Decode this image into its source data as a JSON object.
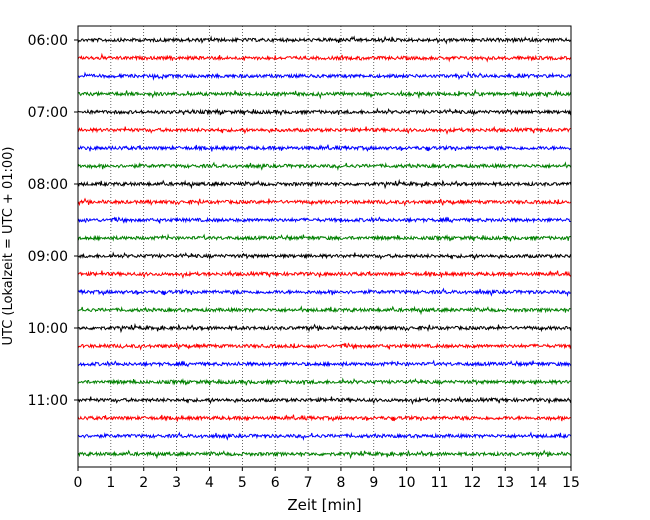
{
  "chart_data": {
    "type": "line",
    "title": "",
    "xlabel": "Zeit  [min]",
    "ylabel": "UTC (Lokalzeit = UTC + 01:00)",
    "xlim": [
      0,
      15
    ],
    "x_ticks": [
      "0",
      "1",
      "2",
      "3",
      "4",
      "5",
      "6",
      "7",
      "8",
      "9",
      "10",
      "11",
      "12",
      "13",
      "14",
      "15"
    ],
    "y_ticks": [
      "06:00",
      "07:00",
      "08:00",
      "09:00",
      "10:00",
      "11:00"
    ],
    "y_tick_hours": [
      6,
      7,
      8,
      9,
      10,
      11
    ],
    "grid": "vertical dotted",
    "trace_interval_minutes": 15,
    "trace_colors": [
      "#000000",
      "#ff0000",
      "#0000ff",
      "#008000"
    ],
    "series": [
      {
        "start": "06:00",
        "color": "#000000"
      },
      {
        "start": "06:15",
        "color": "#ff0000"
      },
      {
        "start": "06:30",
        "color": "#0000ff"
      },
      {
        "start": "06:45",
        "color": "#008000"
      },
      {
        "start": "07:00",
        "color": "#000000"
      },
      {
        "start": "07:15",
        "color": "#ff0000"
      },
      {
        "start": "07:30",
        "color": "#0000ff"
      },
      {
        "start": "07:45",
        "color": "#008000"
      },
      {
        "start": "08:00",
        "color": "#000000"
      },
      {
        "start": "08:15",
        "color": "#ff0000"
      },
      {
        "start": "08:30",
        "color": "#0000ff"
      },
      {
        "start": "08:45",
        "color": "#008000"
      },
      {
        "start": "09:00",
        "color": "#000000"
      },
      {
        "start": "09:15",
        "color": "#ff0000"
      },
      {
        "start": "09:30",
        "color": "#0000ff"
      },
      {
        "start": "09:45",
        "color": "#008000"
      },
      {
        "start": "10:00",
        "color": "#000000"
      },
      {
        "start": "10:15",
        "color": "#ff0000"
      },
      {
        "start": "10:30",
        "color": "#0000ff"
      },
      {
        "start": "10:45",
        "color": "#008000"
      },
      {
        "start": "11:00",
        "color": "#000000"
      },
      {
        "start": "11:15",
        "color": "#ff0000"
      },
      {
        "start": "11:30",
        "color": "#0000ff"
      },
      {
        "start": "11:45",
        "color": "#008000"
      }
    ]
  }
}
